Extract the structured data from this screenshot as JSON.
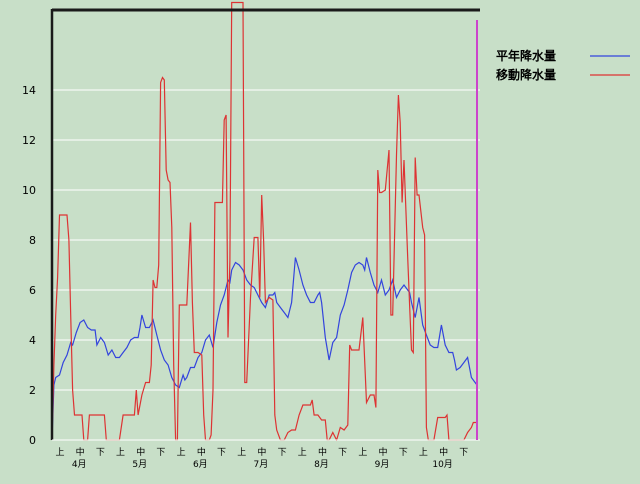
{
  "chart_data": {
    "type": "line",
    "title": "",
    "xlabel": "",
    "ylabel": "",
    "ylim": [
      0,
      17
    ],
    "y_ticks": [
      0,
      2,
      4,
      6,
      8,
      10,
      12,
      14
    ],
    "grid": "horizontal",
    "legend_position": "top-right",
    "x_period_labels": [
      "上",
      "中",
      "下"
    ],
    "months": [
      "4月",
      "5月",
      "6月",
      "7月",
      "8月",
      "9月",
      "10月"
    ],
    "series": [
      {
        "name": "平年降水量",
        "color": "#3344dd",
        "points": [
          [
            0,
            0
          ],
          [
            1,
            2.2
          ],
          [
            2,
            2.5
          ],
          [
            4,
            2.6
          ],
          [
            6,
            3.1
          ],
          [
            8,
            3.4
          ],
          [
            10,
            3.9
          ],
          [
            11,
            3.8
          ],
          [
            13,
            4.3
          ],
          [
            15,
            4.7
          ],
          [
            17,
            4.8
          ],
          [
            19,
            4.5
          ],
          [
            21,
            4.4
          ],
          [
            23,
            4.4
          ],
          [
            24,
            3.8
          ],
          [
            26,
            4.1
          ],
          [
            28,
            3.9
          ],
          [
            30,
            3.4
          ],
          [
            32,
            3.6
          ],
          [
            34,
            3.3
          ],
          [
            36,
            3.3
          ],
          [
            38,
            3.5
          ],
          [
            40,
            3.7
          ],
          [
            42,
            4.0
          ],
          [
            44,
            4.1
          ],
          [
            46,
            4.1
          ],
          [
            47,
            4.5
          ],
          [
            48,
            5.0
          ],
          [
            50,
            4.5
          ],
          [
            52,
            4.5
          ],
          [
            54,
            4.8
          ],
          [
            56,
            4.2
          ],
          [
            58,
            3.6
          ],
          [
            60,
            3.2
          ],
          [
            62,
            3.0
          ],
          [
            64,
            2.5
          ],
          [
            66,
            2.2
          ],
          [
            68,
            2.1
          ],
          [
            70,
            2.6
          ],
          [
            71,
            2.4
          ],
          [
            72,
            2.5
          ],
          [
            74,
            2.9
          ],
          [
            76,
            2.9
          ],
          [
            78,
            3.3
          ],
          [
            80,
            3.5
          ],
          [
            82,
            4.0
          ],
          [
            84,
            4.2
          ],
          [
            86,
            3.7
          ],
          [
            88,
            4.7
          ],
          [
            90,
            5.4
          ],
          [
            92,
            5.8
          ],
          [
            94,
            6.4
          ],
          [
            95,
            6.3
          ],
          [
            96,
            6.8
          ],
          [
            98,
            7.1
          ],
          [
            100,
            7.0
          ],
          [
            102,
            6.8
          ],
          [
            104,
            6.4
          ],
          [
            106,
            6.2
          ],
          [
            108,
            6.1
          ],
          [
            110,
            5.8
          ],
          [
            112,
            5.5
          ],
          [
            114,
            5.3
          ],
          [
            116,
            5.8
          ],
          [
            118,
            5.8
          ],
          [
            119,
            5.9
          ],
          [
            120,
            5.5
          ],
          [
            122,
            5.3
          ],
          [
            124,
            5.1
          ],
          [
            126,
            4.9
          ],
          [
            128,
            5.5
          ],
          [
            130,
            7.3
          ],
          [
            132,
            6.8
          ],
          [
            134,
            6.2
          ],
          [
            136,
            5.8
          ],
          [
            138,
            5.5
          ],
          [
            140,
            5.5
          ],
          [
            142,
            5.8
          ],
          [
            143,
            5.9
          ],
          [
            144,
            5.5
          ],
          [
            146,
            4.1
          ],
          [
            148,
            3.2
          ],
          [
            150,
            3.9
          ],
          [
            152,
            4.1
          ],
          [
            154,
            5.0
          ],
          [
            156,
            5.4
          ],
          [
            158,
            6.0
          ],
          [
            160,
            6.7
          ],
          [
            162,
            7.0
          ],
          [
            164,
            7.1
          ],
          [
            166,
            7.0
          ],
          [
            167,
            6.8
          ],
          [
            168,
            7.3
          ],
          [
            170,
            6.7
          ],
          [
            172,
            6.2
          ],
          [
            174,
            5.9
          ],
          [
            176,
            6.4
          ],
          [
            178,
            5.8
          ],
          [
            180,
            6.0
          ],
          [
            182,
            6.4
          ],
          [
            184,
            5.7
          ],
          [
            186,
            6.0
          ],
          [
            188,
            6.2
          ],
          [
            190,
            6.0
          ],
          [
            191,
            5.9
          ],
          [
            192,
            5.5
          ],
          [
            194,
            4.9
          ],
          [
            196,
            5.7
          ],
          [
            198,
            4.6
          ],
          [
            200,
            4.2
          ],
          [
            202,
            3.8
          ],
          [
            204,
            3.7
          ],
          [
            206,
            3.7
          ],
          [
            208,
            4.6
          ],
          [
            210,
            3.8
          ],
          [
            212,
            3.5
          ],
          [
            214,
            3.5
          ],
          [
            215,
            3.2
          ],
          [
            216,
            2.8
          ],
          [
            218,
            2.9
          ],
          [
            220,
            3.1
          ],
          [
            222,
            3.3
          ],
          [
            224,
            2.5
          ],
          [
            226,
            2.3
          ],
          [
            227,
            2.2
          ]
        ]
      },
      {
        "name": "移動降水量",
        "color": "#dd3333",
        "points": [
          [
            0,
            0
          ],
          [
            1,
            3.0
          ],
          [
            2,
            5.0
          ],
          [
            3,
            6.5
          ],
          [
            4,
            9.0
          ],
          [
            6,
            9.0
          ],
          [
            8,
            9.0
          ],
          [
            9,
            8.0
          ],
          [
            10,
            5.0
          ],
          [
            11,
            2.0
          ],
          [
            12,
            1.0
          ],
          [
            14,
            1.0
          ],
          [
            16,
            1.0
          ],
          [
            17,
            0
          ],
          [
            18,
            0
          ],
          [
            19,
            0
          ],
          [
            20,
            1.0
          ],
          [
            22,
            1.0
          ],
          [
            24,
            1.0
          ],
          [
            26,
            1.0
          ],
          [
            28,
            1.0
          ],
          [
            29,
            0
          ],
          [
            30,
            0
          ],
          [
            32,
            0
          ],
          [
            34,
            0
          ],
          [
            36,
            0
          ],
          [
            38,
            1.0
          ],
          [
            40,
            1.0
          ],
          [
            42,
            1.0
          ],
          [
            44,
            1.0
          ],
          [
            45,
            2.0
          ],
          [
            46,
            1.0
          ],
          [
            48,
            1.8
          ],
          [
            50,
            2.3
          ],
          [
            52,
            2.3
          ],
          [
            53,
            3.0
          ],
          [
            54,
            6.4
          ],
          [
            55,
            6.1
          ],
          [
            56,
            6.1
          ],
          [
            57,
            7.0
          ],
          [
            58,
            14.3
          ],
          [
            59,
            14.5
          ],
          [
            60,
            14.4
          ],
          [
            61,
            10.8
          ],
          [
            62,
            10.4
          ],
          [
            63,
            10.3
          ],
          [
            64,
            8.5
          ],
          [
            65,
            3.0
          ],
          [
            66,
            0
          ],
          [
            67,
            0
          ],
          [
            68,
            5.4
          ],
          [
            70,
            5.4
          ],
          [
            72,
            5.4
          ],
          [
            74,
            8.7
          ],
          [
            75,
            5.5
          ],
          [
            76,
            3.5
          ],
          [
            78,
            3.5
          ],
          [
            80,
            3.4
          ],
          [
            81,
            1.0
          ],
          [
            82,
            0
          ],
          [
            84,
            0
          ],
          [
            85,
            0.2
          ],
          [
            86,
            2.0
          ],
          [
            87,
            9.5
          ],
          [
            89,
            9.5
          ],
          [
            91,
            9.5
          ],
          [
            92,
            12.8
          ],
          [
            93,
            13.0
          ],
          [
            94,
            4.1
          ],
          [
            95,
            7.2
          ],
          [
            96,
            17.5
          ],
          [
            97,
            17.5
          ],
          [
            98,
            17.5
          ],
          [
            99,
            17.5
          ],
          [
            100,
            17.5
          ],
          [
            101,
            17.5
          ],
          [
            102,
            17.5
          ],
          [
            103,
            2.3
          ],
          [
            104,
            2.3
          ],
          [
            106,
            5.7
          ],
          [
            108,
            8.1
          ],
          [
            110,
            8.1
          ],
          [
            111,
            5.7
          ],
          [
            112,
            9.8
          ],
          [
            113,
            8.0
          ],
          [
            114,
            5.5
          ],
          [
            116,
            5.7
          ],
          [
            118,
            5.6
          ],
          [
            119,
            1.0
          ],
          [
            120,
            0.4
          ],
          [
            122,
            0
          ],
          [
            124,
            0
          ],
          [
            126,
            0.3
          ],
          [
            128,
            0.4
          ],
          [
            130,
            0.4
          ],
          [
            132,
            1.0
          ],
          [
            134,
            1.4
          ],
          [
            136,
            1.4
          ],
          [
            138,
            1.4
          ],
          [
            139,
            1.6
          ],
          [
            140,
            1.0
          ],
          [
            142,
            1.0
          ],
          [
            144,
            0.8
          ],
          [
            146,
            0.8
          ],
          [
            147,
            0
          ],
          [
            148,
            0
          ],
          [
            150,
            0.3
          ],
          [
            152,
            0
          ],
          [
            154,
            0.5
          ],
          [
            156,
            0.4
          ],
          [
            158,
            0.6
          ],
          [
            159,
            3.8
          ],
          [
            160,
            3.6
          ],
          [
            162,
            3.6
          ],
          [
            164,
            3.6
          ],
          [
            166,
            4.9
          ],
          [
            168,
            1.5
          ],
          [
            170,
            1.8
          ],
          [
            172,
            1.8
          ],
          [
            173,
            1.3
          ],
          [
            174,
            10.8
          ],
          [
            175,
            9.9
          ],
          [
            176,
            9.9
          ],
          [
            178,
            10.0
          ],
          [
            180,
            11.6
          ],
          [
            181,
            5.0
          ],
          [
            182,
            5.0
          ],
          [
            184,
            11.4
          ],
          [
            185,
            13.8
          ],
          [
            186,
            12.7
          ],
          [
            187,
            9.5
          ],
          [
            188,
            11.2
          ],
          [
            190,
            7.3
          ],
          [
            191,
            5.4
          ],
          [
            192,
            3.6
          ],
          [
            193,
            3.5
          ],
          [
            194,
            11.3
          ],
          [
            195,
            9.8
          ],
          [
            196,
            9.8
          ],
          [
            198,
            8.5
          ],
          [
            199,
            8.2
          ],
          [
            200,
            0.5
          ],
          [
            201,
            0
          ],
          [
            202,
            0
          ],
          [
            204,
            0
          ],
          [
            206,
            0.9
          ],
          [
            208,
            0.9
          ],
          [
            210,
            0.9
          ],
          [
            211,
            1.0
          ],
          [
            212,
            0
          ],
          [
            214,
            0
          ],
          [
            216,
            0
          ],
          [
            218,
            0
          ],
          [
            220,
            0
          ],
          [
            222,
            0.3
          ],
          [
            224,
            0.5
          ],
          [
            225,
            0.7
          ],
          [
            227,
            0.7
          ]
        ]
      }
    ]
  }
}
